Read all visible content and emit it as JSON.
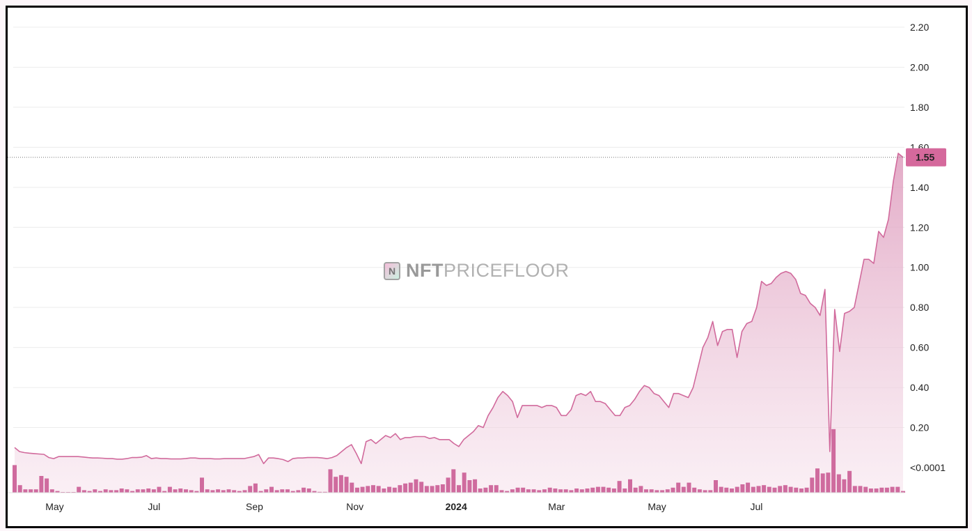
{
  "watermark": {
    "bold": "NFT",
    "rest": "PRICEFLOOR",
    "logo_letter": "N"
  },
  "chart_data": {
    "type": "area",
    "x_tick_labels": [
      "May",
      "Jul",
      "Sep",
      "Nov",
      "2024",
      "Mar",
      "May",
      "Jul"
    ],
    "y_tick_labels": [
      "2.20",
      "2.00",
      "1.80",
      "1.60",
      "1.40",
      "1.20",
      "1.00",
      "0.80",
      "0.60",
      "0.40",
      "0.20",
      "<0.0001"
    ],
    "y_ticks": [
      2.2,
      2.0,
      1.8,
      1.6,
      1.4,
      1.2,
      1.0,
      0.8,
      0.6,
      0.4,
      0.2,
      0.0
    ],
    "ylim": [
      0,
      2.3
    ],
    "current_price": 1.55,
    "current_price_label": "1.55",
    "colors": {
      "line": "#d16a9c",
      "fill": "#e3a0c0",
      "volume": "#cf6b9e",
      "badge": "#d5699c"
    },
    "price": [
      0.1,
      0.08,
      0.075,
      0.072,
      0.07,
      0.068,
      0.066,
      0.05,
      0.045,
      0.055,
      0.055,
      0.055,
      0.055,
      0.055,
      0.053,
      0.05,
      0.048,
      0.048,
      0.047,
      0.045,
      0.045,
      0.042,
      0.042,
      0.045,
      0.05,
      0.05,
      0.052,
      0.06,
      0.045,
      0.048,
      0.045,
      0.045,
      0.043,
      0.043,
      0.043,
      0.045,
      0.048,
      0.048,
      0.045,
      0.045,
      0.045,
      0.043,
      0.043,
      0.045,
      0.045,
      0.045,
      0.045,
      0.045,
      0.05,
      0.055,
      0.065,
      0.02,
      0.048,
      0.048,
      0.045,
      0.04,
      0.03,
      0.045,
      0.048,
      0.048,
      0.05,
      0.05,
      0.05,
      0.048,
      0.045,
      0.05,
      0.06,
      0.08,
      0.1,
      0.115,
      0.07,
      0.02,
      0.13,
      0.14,
      0.12,
      0.14,
      0.16,
      0.15,
      0.17,
      0.14,
      0.15,
      0.15,
      0.155,
      0.155,
      0.155,
      0.145,
      0.15,
      0.14,
      0.14,
      0.14,
      0.12,
      0.105,
      0.14,
      0.16,
      0.18,
      0.21,
      0.2,
      0.26,
      0.3,
      0.35,
      0.38,
      0.36,
      0.33,
      0.25,
      0.31,
      0.31,
      0.31,
      0.31,
      0.3,
      0.31,
      0.31,
      0.3,
      0.26,
      0.26,
      0.29,
      0.36,
      0.37,
      0.36,
      0.38,
      0.33,
      0.33,
      0.32,
      0.29,
      0.26,
      0.26,
      0.3,
      0.31,
      0.34,
      0.38,
      0.41,
      0.4,
      0.37,
      0.36,
      0.33,
      0.3,
      0.37,
      0.37,
      0.36,
      0.35,
      0.4,
      0.5,
      0.6,
      0.65,
      0.73,
      0.61,
      0.68,
      0.69,
      0.69,
      0.55,
      0.68,
      0.72,
      0.73,
      0.8,
      0.93,
      0.91,
      0.92,
      0.95,
      0.97,
      0.98,
      0.97,
      0.94,
      0.87,
      0.86,
      0.82,
      0.8,
      0.76,
      0.89,
      0.08,
      0.79,
      0.58,
      0.77,
      0.78,
      0.8,
      0.92,
      1.04,
      1.04,
      1.02,
      1.18,
      1.15,
      1.24,
      1.43,
      1.57,
      1.55
    ],
    "volume": [
      0.165,
      0.045,
      0.02,
      0.02,
      0.02,
      0.1,
      0.085,
      0.02,
      0.01,
      0.003,
      0.003,
      0.003,
      0.035,
      0.015,
      0.01,
      0.02,
      0.01,
      0.02,
      0.015,
      0.015,
      0.025,
      0.02,
      0.01,
      0.02,
      0.02,
      0.025,
      0.02,
      0.035,
      0.01,
      0.035,
      0.02,
      0.025,
      0.02,
      0.015,
      0.01,
      0.09,
      0.02,
      0.015,
      0.02,
      0.015,
      0.02,
      0.015,
      0.01,
      0.015,
      0.04,
      0.055,
      0.01,
      0.02,
      0.035,
      0.015,
      0.02,
      0.02,
      0.01,
      0.015,
      0.03,
      0.025,
      0.01,
      0.005,
      0.005,
      0.14,
      0.095,
      0.105,
      0.095,
      0.06,
      0.03,
      0.035,
      0.04,
      0.045,
      0.04,
      0.025,
      0.035,
      0.03,
      0.045,
      0.055,
      0.06,
      0.08,
      0.065,
      0.04,
      0.04,
      0.045,
      0.05,
      0.09,
      0.14,
      0.045,
      0.12,
      0.075,
      0.08,
      0.025,
      0.03,
      0.045,
      0.045,
      0.015,
      0.01,
      0.02,
      0.03,
      0.03,
      0.02,
      0.02,
      0.015,
      0.02,
      0.03,
      0.025,
      0.02,
      0.02,
      0.015,
      0.025,
      0.02,
      0.025,
      0.03,
      0.035,
      0.035,
      0.03,
      0.025,
      0.07,
      0.025,
      0.08,
      0.03,
      0.04,
      0.02,
      0.02,
      0.015,
      0.015,
      0.02,
      0.03,
      0.06,
      0.035,
      0.06,
      0.03,
      0.02,
      0.015,
      0.015,
      0.075,
      0.035,
      0.03,
      0.025,
      0.035,
      0.05,
      0.06,
      0.035,
      0.04,
      0.045,
      0.035,
      0.03,
      0.04,
      0.045,
      0.035,
      0.03,
      0.025,
      0.03,
      0.09,
      0.145,
      0.115,
      0.12,
      0.38,
      0.11,
      0.08,
      0.13,
      0.04,
      0.04,
      0.035,
      0.025,
      0.025,
      0.03,
      0.03,
      0.035,
      0.035,
      0.01
    ]
  }
}
